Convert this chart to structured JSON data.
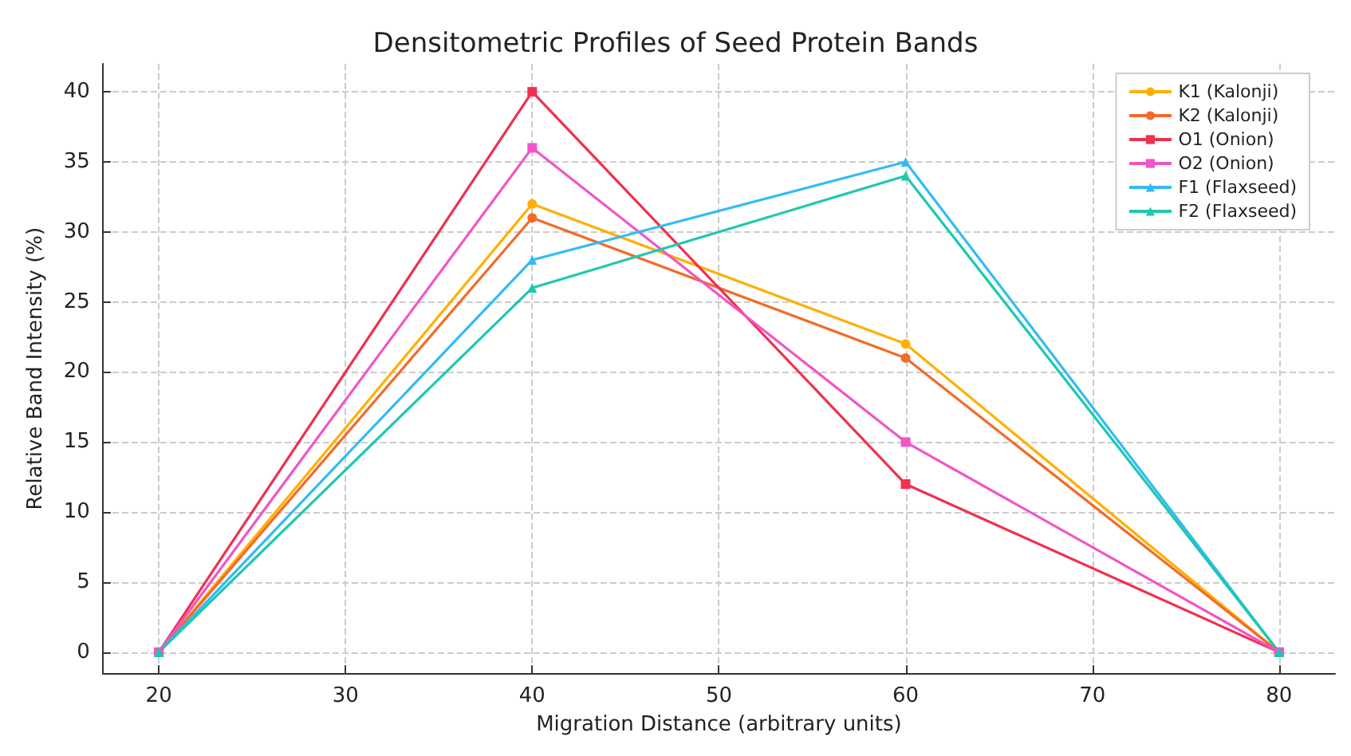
{
  "chart_data": {
    "type": "line",
    "title": "Densitometric Profiles of Seed Protein Bands",
    "xlabel": "Migration Distance (arbitrary units)",
    "ylabel": "Relative Band Intensity (%)",
    "x": [
      20,
      40,
      60,
      80
    ],
    "series": [
      {
        "name": "K1 (Kalonji)",
        "color": "#ffb000",
        "marker": "circle",
        "values": [
          0,
          32,
          22,
          0
        ]
      },
      {
        "name": "K2 (Kalonji)",
        "color": "#f26b2a",
        "marker": "circle",
        "values": [
          0,
          31,
          21,
          0
        ]
      },
      {
        "name": "O1 (Onion)",
        "color": "#f0304f",
        "marker": "square",
        "values": [
          0,
          40,
          12,
          0
        ]
      },
      {
        "name": "O2 (Onion)",
        "color": "#f055c8",
        "marker": "square",
        "values": [
          0,
          36,
          15,
          0
        ]
      },
      {
        "name": "F1 (Flaxseed)",
        "color": "#33bbf5",
        "marker": "triangle",
        "values": [
          0,
          28,
          35,
          0
        ]
      },
      {
        "name": "F2 (Flaxseed)",
        "color": "#1ec8b0",
        "marker": "triangle",
        "values": [
          0,
          26,
          34,
          0
        ]
      }
    ],
    "xlim": [
      17,
      83
    ],
    "xticks": [
      20,
      30,
      40,
      50,
      60,
      70,
      80
    ],
    "ylim": [
      -1.5,
      42
    ],
    "yticks": [
      0,
      5,
      10,
      15,
      20,
      25,
      30,
      35,
      40
    ],
    "grid": true,
    "legend": "top right",
    "line_style": "solid"
  }
}
